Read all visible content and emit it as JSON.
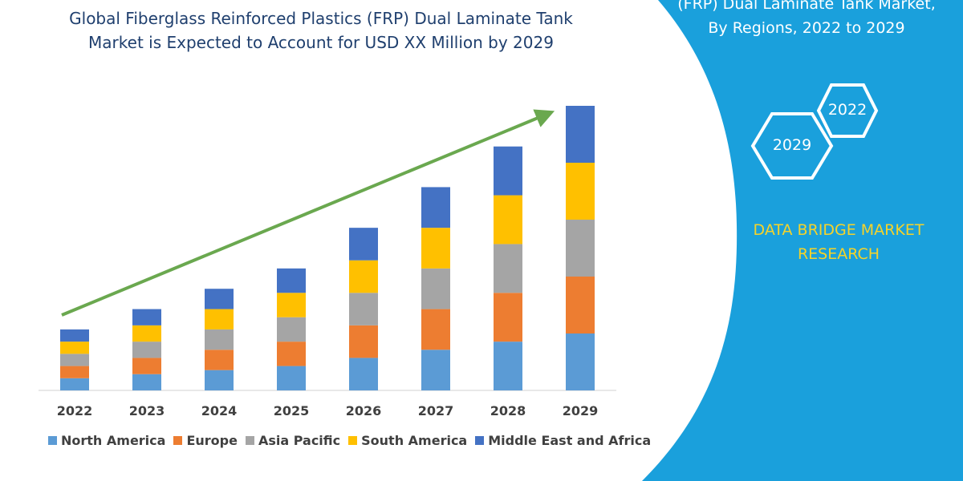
{
  "title_lines": [
    "Global Fiberglass Reinforced Plastics (FRP) Dual Laminate Tank",
    "Market is Expected to Account for USD XX Million by 2029"
  ],
  "side_panel": {
    "title_lines": [
      "(FRP) Dual Laminate Tank Market,",
      "By Regions, 2022 to 2029"
    ],
    "hex_labels": [
      "2022",
      "2029"
    ],
    "brand_lines": [
      "DATA BRIDGE MARKET",
      "RESEARCH"
    ],
    "background_color": "#1aa0dc",
    "brand_color": "#f5d32a"
  },
  "chart_data": {
    "type": "bar",
    "stacked": true,
    "categories": [
      "2022",
      "2023",
      "2024",
      "2025",
      "2026",
      "2027",
      "2028",
      "2029"
    ],
    "series": [
      {
        "name": "North America",
        "color": "#5b9bd5",
        "values": [
          3,
          4,
          5,
          6,
          8,
          10,
          12,
          14
        ]
      },
      {
        "name": "Europe",
        "color": "#ed7d31",
        "values": [
          3,
          4,
          5,
          6,
          8,
          10,
          12,
          14
        ]
      },
      {
        "name": "Asia Pacific",
        "color": "#a5a5a5",
        "values": [
          3,
          4,
          5,
          6,
          8,
          10,
          12,
          14
        ]
      },
      {
        "name": "South America",
        "color": "#ffc000",
        "values": [
          3,
          4,
          5,
          6,
          8,
          10,
          12,
          14
        ]
      },
      {
        "name": "Middle East and Africa",
        "color": "#4472c4",
        "values": [
          3,
          4,
          5,
          6,
          8,
          10,
          12,
          14
        ]
      }
    ],
    "ylim": [
      0,
      70
    ],
    "trend_arrow": true,
    "trend_color": "#6aa84f",
    "legend_position": "bottom",
    "grid": false
  }
}
